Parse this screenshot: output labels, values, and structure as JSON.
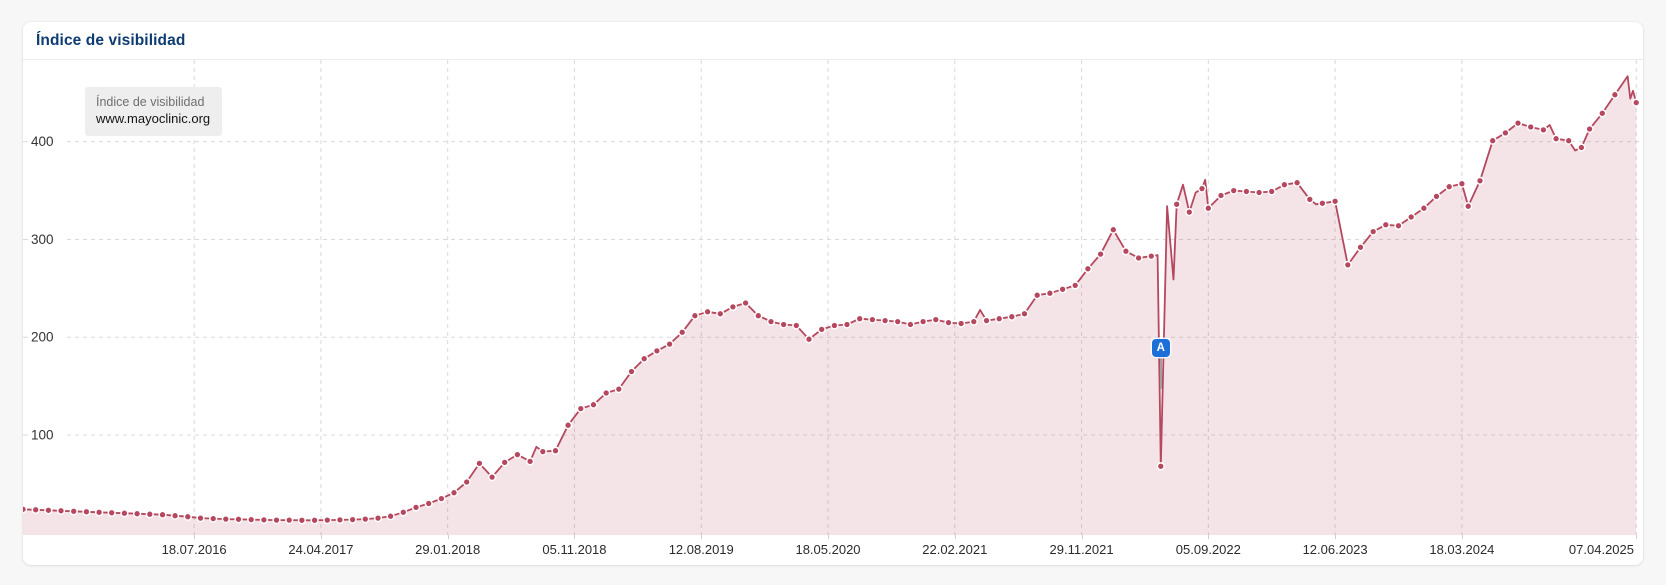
{
  "panel": {
    "title": "Índice de visibilidad",
    "title_color": "#0e3b72",
    "legend": {
      "metric": "Índice de visibilidad",
      "domain": "www.mayoclinic.org"
    },
    "event_marker": {
      "label": "A",
      "color": "#1c6fd8"
    }
  },
  "chart_data": {
    "type": "line",
    "area": true,
    "series_name": "www.mayoclinic.org",
    "line_color": "#b5485f",
    "dot_color": "#b5485f",
    "fill_color": "rgba(181,72,95,0.15)",
    "grid_color": "#d9d9d9",
    "legend_position": "top-left",
    "grid": true,
    "y_axis": {
      "ticks": [
        100,
        200,
        300,
        400
      ],
      "range": [
        0,
        483
      ],
      "label_color": "#333333"
    },
    "x_axis": {
      "unit": "days since first data point (weekly series)",
      "t_range": [
        0,
        3578
      ],
      "ticks": [
        {
          "label": "18.07.2016",
          "t": 378,
          "align": "center"
        },
        {
          "label": "24.04.2017",
          "t": 658,
          "align": "center"
        },
        {
          "label": "29.01.2018",
          "t": 938,
          "align": "center"
        },
        {
          "label": "05.11.2018",
          "t": 1218,
          "align": "center"
        },
        {
          "label": "12.08.2019",
          "t": 1498,
          "align": "center"
        },
        {
          "label": "18.05.2020",
          "t": 1778,
          "align": "center"
        },
        {
          "label": "22.02.2021",
          "t": 2058,
          "align": "center"
        },
        {
          "label": "29.11.2021",
          "t": 2338,
          "align": "center"
        },
        {
          "label": "05.09.2022",
          "t": 2618,
          "align": "center"
        },
        {
          "label": "12.06.2023",
          "t": 2898,
          "align": "center"
        },
        {
          "label": "18.03.2024",
          "t": 3178,
          "align": "center"
        },
        {
          "label": "07.04.2025",
          "t": 3563,
          "align": "right"
        }
      ]
    },
    "event_marker": {
      "label": "A",
      "t": 2513,
      "dip_value": 68
    },
    "points_format": "[t_days, visibility_index, has_dot]",
    "points": [
      [
        0,
        24,
        1
      ],
      [
        28,
        23.5,
        1
      ],
      [
        56,
        23,
        1
      ],
      [
        84,
        22.5,
        1
      ],
      [
        112,
        22,
        1
      ],
      [
        140,
        21.5,
        1
      ],
      [
        168,
        21,
        1
      ],
      [
        196,
        20.5,
        1
      ],
      [
        224,
        20,
        1
      ],
      [
        252,
        19.5,
        1
      ],
      [
        280,
        19,
        1
      ],
      [
        308,
        18.5,
        1
      ],
      [
        336,
        17.5,
        1
      ],
      [
        364,
        16.5,
        1
      ],
      [
        392,
        15,
        1
      ],
      [
        420,
        14.5,
        1
      ],
      [
        448,
        14,
        1
      ],
      [
        476,
        13.8,
        1
      ],
      [
        504,
        13.5,
        1
      ],
      [
        532,
        13.2,
        1
      ],
      [
        560,
        13,
        1
      ],
      [
        588,
        13,
        1
      ],
      [
        616,
        12.8,
        1
      ],
      [
        644,
        12.8,
        1
      ],
      [
        672,
        13,
        1
      ],
      [
        700,
        13.2,
        1
      ],
      [
        728,
        13.5,
        1
      ],
      [
        756,
        14,
        1
      ],
      [
        784,
        15,
        1
      ],
      [
        812,
        17,
        1
      ],
      [
        840,
        21,
        1
      ],
      [
        868,
        26,
        1
      ],
      [
        896,
        30,
        1
      ],
      [
        924,
        35,
        1
      ],
      [
        952,
        41,
        1
      ],
      [
        980,
        52,
        1
      ],
      [
        1008,
        71,
        1
      ],
      [
        1036,
        57,
        1
      ],
      [
        1064,
        72,
        1
      ],
      [
        1092,
        80,
        1
      ],
      [
        1120,
        73,
        1
      ],
      [
        1134,
        88,
        0
      ],
      [
        1148,
        83,
        1
      ],
      [
        1176,
        84,
        1
      ],
      [
        1204,
        110,
        1
      ],
      [
        1232,
        127,
        1
      ],
      [
        1260,
        131,
        1
      ],
      [
        1288,
        143,
        1
      ],
      [
        1316,
        147,
        1
      ],
      [
        1344,
        165,
        1
      ],
      [
        1372,
        178,
        1
      ],
      [
        1400,
        186,
        1
      ],
      [
        1428,
        193,
        1
      ],
      [
        1456,
        205,
        1
      ],
      [
        1484,
        222,
        1
      ],
      [
        1512,
        226,
        1
      ],
      [
        1540,
        224,
        1
      ],
      [
        1568,
        231,
        1
      ],
      [
        1596,
        235,
        1
      ],
      [
        1624,
        222,
        1
      ],
      [
        1652,
        216,
        1
      ],
      [
        1680,
        213,
        1
      ],
      [
        1708,
        212,
        1
      ],
      [
        1736,
        198,
        1
      ],
      [
        1764,
        208,
        1
      ],
      [
        1792,
        212,
        1
      ],
      [
        1820,
        213,
        1
      ],
      [
        1848,
        219,
        1
      ],
      [
        1876,
        218,
        1
      ],
      [
        1904,
        217,
        1
      ],
      [
        1932,
        216,
        1
      ],
      [
        1960,
        213,
        1
      ],
      [
        1988,
        216,
        1
      ],
      [
        2016,
        218,
        1
      ],
      [
        2044,
        215,
        1
      ],
      [
        2072,
        214,
        1
      ],
      [
        2100,
        216,
        1
      ],
      [
        2114,
        228,
        0
      ],
      [
        2128,
        217,
        1
      ],
      [
        2156,
        219,
        1
      ],
      [
        2184,
        221,
        1
      ],
      [
        2212,
        224,
        1
      ],
      [
        2240,
        243,
        1
      ],
      [
        2268,
        245,
        1
      ],
      [
        2296,
        249,
        1
      ],
      [
        2324,
        253,
        1
      ],
      [
        2352,
        270,
        1
      ],
      [
        2380,
        285,
        1
      ],
      [
        2408,
        310,
        1
      ],
      [
        2436,
        288,
        1
      ],
      [
        2464,
        281,
        1
      ],
      [
        2492,
        283,
        1
      ],
      [
        2506,
        284,
        0
      ],
      [
        2513,
        68,
        1
      ],
      [
        2527,
        334,
        0
      ],
      [
        2541,
        259,
        0
      ],
      [
        2548,
        336,
        1
      ],
      [
        2562,
        356,
        0
      ],
      [
        2576,
        328,
        1
      ],
      [
        2590,
        348,
        0
      ],
      [
        2604,
        352,
        1
      ],
      [
        2611,
        361,
        0
      ],
      [
        2618,
        332,
        1
      ],
      [
        2646,
        345,
        1
      ],
      [
        2674,
        350,
        1
      ],
      [
        2702,
        349,
        1
      ],
      [
        2730,
        348,
        1
      ],
      [
        2758,
        349,
        1
      ],
      [
        2786,
        356,
        1
      ],
      [
        2814,
        358,
        1
      ],
      [
        2842,
        341,
        1
      ],
      [
        2856,
        336,
        0
      ],
      [
        2870,
        337,
        1
      ],
      [
        2898,
        339,
        1
      ],
      [
        2926,
        274,
        1
      ],
      [
        2954,
        292,
        1
      ],
      [
        2982,
        308,
        1
      ],
      [
        3010,
        315,
        1
      ],
      [
        3038,
        314,
        1
      ],
      [
        3066,
        323,
        1
      ],
      [
        3094,
        332,
        1
      ],
      [
        3122,
        344,
        1
      ],
      [
        3150,
        354,
        1
      ],
      [
        3178,
        357,
        1
      ],
      [
        3192,
        334,
        1
      ],
      [
        3218,
        360,
        1
      ],
      [
        3246,
        401,
        1
      ],
      [
        3274,
        409,
        1
      ],
      [
        3302,
        419,
        1
      ],
      [
        3330,
        415,
        1
      ],
      [
        3358,
        412,
        1
      ],
      [
        3372,
        417,
        0
      ],
      [
        3386,
        403,
        1
      ],
      [
        3414,
        401,
        1
      ],
      [
        3428,
        391,
        0
      ],
      [
        3442,
        394,
        1
      ],
      [
        3460,
        413,
        1
      ],
      [
        3488,
        429,
        1
      ],
      [
        3516,
        448,
        1
      ],
      [
        3544,
        467,
        0
      ],
      [
        3550,
        444,
        0
      ],
      [
        3556,
        452,
        0
      ],
      [
        3563,
        440,
        1
      ]
    ]
  }
}
